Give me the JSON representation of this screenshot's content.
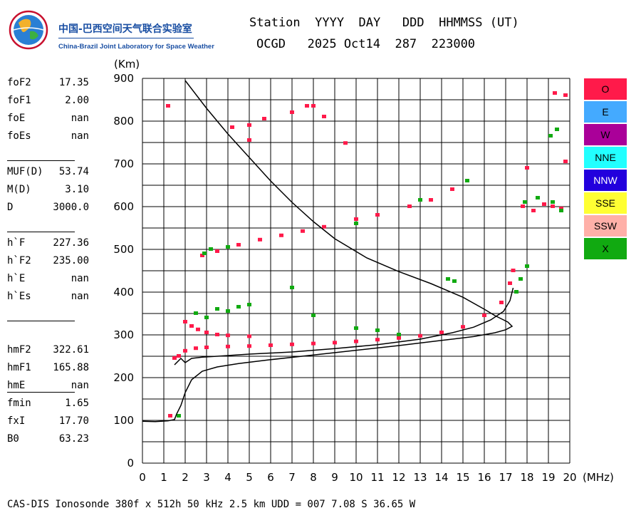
{
  "logo": {
    "name_cn": "中国-巴西空间天气联合实验室",
    "name_en": "China-Brazil Joint Laboratory for Space Weather"
  },
  "header": {
    "line1": "Station  YYYY  DAY   DDD  HHMMSS (UT)",
    "line2": "OCGD   2025 Oct14  287  223000"
  },
  "params": [
    {
      "label": "foF2",
      "value": "17.35"
    },
    {
      "label": "foF1",
      "value": "2.00"
    },
    {
      "label": "foE",
      "value": "nan"
    },
    {
      "label": "foEs",
      "value": "nan"
    },
    {
      "label": "MUF(D)",
      "value": "53.74"
    },
    {
      "label": "M(D)",
      "value": "3.10"
    },
    {
      "label": "D",
      "value": "3000.0"
    },
    {
      "label": "h`F",
      "value": "227.36"
    },
    {
      "label": "h`F2",
      "value": "235.00"
    },
    {
      "label": "h`E",
      "value": "nan"
    },
    {
      "label": "h`Es",
      "value": "nan"
    },
    {
      "label": "hmF2",
      "value": "322.61"
    },
    {
      "label": "hmF1",
      "value": "165.88"
    },
    {
      "label": "hmE",
      "value": "nan"
    },
    {
      "label": "fmin",
      "value": "1.65"
    },
    {
      "label": "fxI",
      "value": "17.70"
    },
    {
      "label": "B0",
      "value": "63.23"
    }
  ],
  "legend": [
    {
      "label": "O",
      "color": "#ff1a4a"
    },
    {
      "label": "E",
      "color": "#44aaff"
    },
    {
      "label": "W",
      "color": "#aa0099"
    },
    {
      "label": "NNE",
      "color": "#22ffff"
    },
    {
      "label": "NNW",
      "color": "#2200dd"
    },
    {
      "label": "SSE",
      "color": "#ffff33"
    },
    {
      "label": "SSW",
      "color": "#ffb0a8"
    },
    {
      "label": "X",
      "color": "#11aa11"
    }
  ],
  "footer": "CAS-DIS Ionosonde 380f x 512h 50 kHz 2.5 km UDD = 007 7.08 S 36.65 W",
  "chart_data": {
    "type": "scatter",
    "xlabel": "(MHz)",
    "ylabel": "(Km)",
    "xlim": [
      0,
      20
    ],
    "ylim": [
      0,
      900
    ],
    "xticks": [
      "0",
      "1",
      "2",
      "3",
      "4",
      "5",
      "6",
      "7",
      "8",
      "9",
      "10",
      "11",
      "12",
      "13",
      "14",
      "15",
      "16",
      "17",
      "18",
      "19",
      "20"
    ],
    "yticks": [
      "0",
      "100",
      "200",
      "300",
      "400",
      "500",
      "600",
      "700",
      "800",
      "900"
    ],
    "grid": true,
    "traces": [
      {
        "name": "O",
        "color": "#ff1a4a",
        "points": [
          [
            1.3,
            110
          ],
          [
            1.5,
            245
          ],
          [
            1.7,
            250
          ],
          [
            2.0,
            262
          ],
          [
            2.5,
            268
          ],
          [
            3.0,
            270
          ],
          [
            4.0,
            272
          ],
          [
            5.0,
            273
          ],
          [
            6.0,
            275
          ],
          [
            7.0,
            277
          ],
          [
            8.0,
            279
          ],
          [
            9.0,
            281
          ],
          [
            10.0,
            284
          ],
          [
            11.0,
            288
          ],
          [
            12.0,
            292
          ],
          [
            13.0,
            297
          ],
          [
            14.0,
            305
          ],
          [
            15.0,
            318
          ],
          [
            16.0,
            345
          ],
          [
            16.8,
            375
          ],
          [
            17.2,
            420
          ],
          [
            17.35,
            450
          ],
          [
            2.0,
            330
          ],
          [
            2.3,
            320
          ],
          [
            2.6,
            312
          ],
          [
            3.0,
            305
          ],
          [
            3.5,
            300
          ],
          [
            4.0,
            298
          ],
          [
            5.0,
            296
          ],
          [
            2.8,
            485
          ],
          [
            3.5,
            495
          ],
          [
            4.5,
            510
          ],
          [
            5.5,
            522
          ],
          [
            6.5,
            532
          ],
          [
            7.5,
            542
          ],
          [
            8.5,
            552
          ],
          [
            10.0,
            570
          ],
          [
            11.0,
            580
          ],
          [
            12.5,
            600
          ],
          [
            13.5,
            615
          ],
          [
            14.5,
            640
          ],
          [
            1.2,
            835
          ],
          [
            4.2,
            785
          ],
          [
            5.0,
            790
          ],
          [
            5.7,
            805
          ],
          [
            7.0,
            820
          ],
          [
            7.7,
            835
          ],
          [
            8.0,
            835
          ],
          [
            8.5,
            810
          ],
          [
            9.5,
            748
          ],
          [
            5.0,
            755
          ],
          [
            18.0,
            690
          ],
          [
            19.8,
            705
          ],
          [
            19.3,
            865
          ],
          [
            19.8,
            860
          ],
          [
            17.8,
            600
          ],
          [
            18.3,
            590
          ],
          [
            18.8,
            605
          ],
          [
            19.2,
            600
          ],
          [
            19.6,
            595
          ]
        ]
      },
      {
        "name": "X",
        "color": "#11aa11",
        "points": [
          [
            1.7,
            110
          ],
          [
            2.5,
            350
          ],
          [
            3.0,
            340
          ],
          [
            3.5,
            360
          ],
          [
            4.0,
            355
          ],
          [
            4.5,
            365
          ],
          [
            5.0,
            370
          ],
          [
            7.0,
            410
          ],
          [
            8.0,
            345
          ],
          [
            10.0,
            315
          ],
          [
            11.0,
            310
          ],
          [
            12.0,
            300
          ],
          [
            14.3,
            430
          ],
          [
            14.6,
            425
          ],
          [
            15.2,
            660
          ],
          [
            17.5,
            400
          ],
          [
            17.7,
            430
          ],
          [
            18.0,
            460
          ],
          [
            2.9,
            490
          ],
          [
            3.2,
            500
          ],
          [
            4.0,
            505
          ],
          [
            10.0,
            560
          ],
          [
            13.0,
            615
          ],
          [
            17.9,
            610
          ],
          [
            18.5,
            620
          ],
          [
            19.2,
            610
          ],
          [
            19.6,
            590
          ],
          [
            19.1,
            765
          ],
          [
            19.4,
            780
          ]
        ]
      }
    ],
    "curves": [
      {
        "name": "virtual-height-trace",
        "points": [
          [
            0.0,
            98
          ],
          [
            0.6,
            97
          ],
          [
            1.2,
            99
          ],
          [
            1.5,
            102
          ],
          [
            1.6,
            115
          ],
          [
            1.8,
            135
          ],
          [
            2.0,
            165
          ],
          [
            2.3,
            195
          ],
          [
            2.8,
            215
          ],
          [
            3.5,
            225
          ],
          [
            4.5,
            233
          ],
          [
            6.0,
            242
          ],
          [
            8.0,
            253
          ],
          [
            10.0,
            264
          ],
          [
            12.0,
            275
          ],
          [
            14.0,
            287
          ],
          [
            15.5,
            296
          ],
          [
            16.5,
            305
          ],
          [
            17.0,
            312
          ],
          [
            17.3,
            320
          ],
          [
            17.1,
            330
          ],
          [
            16.5,
            345
          ],
          [
            16.0,
            360
          ],
          [
            15.0,
            388
          ],
          [
            13.5,
            420
          ],
          [
            12.0,
            448
          ],
          [
            10.5,
            480
          ],
          [
            9.0,
            525
          ],
          [
            8.0,
            565
          ],
          [
            7.0,
            610
          ],
          [
            6.0,
            660
          ],
          [
            5.0,
            715
          ],
          [
            4.0,
            770
          ],
          [
            3.0,
            830
          ],
          [
            2.0,
            895
          ]
        ]
      },
      {
        "name": "h-prime-trace",
        "points": [
          [
            1.5,
            230
          ],
          [
            1.8,
            245
          ],
          [
            2.0,
            235
          ],
          [
            2.3,
            245
          ],
          [
            2.8,
            248
          ],
          [
            3.5,
            250
          ],
          [
            5.0,
            255
          ],
          [
            7.0,
            260
          ],
          [
            9.0,
            268
          ],
          [
            11.0,
            277
          ],
          [
            13.0,
            290
          ],
          [
            14.5,
            305
          ],
          [
            15.5,
            318
          ],
          [
            16.3,
            335
          ],
          [
            16.9,
            355
          ],
          [
            17.2,
            380
          ],
          [
            17.35,
            410
          ]
        ]
      }
    ]
  }
}
